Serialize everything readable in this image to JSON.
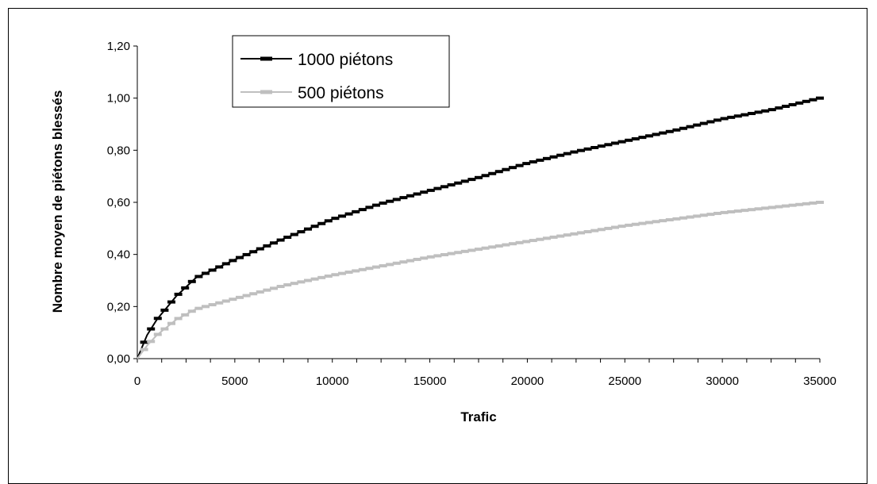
{
  "chart_data": {
    "type": "line",
    "title": "",
    "xlabel": "Trafic",
    "ylabel": "Nombre moyen de piétons blessés",
    "xlim": [
      0,
      35000
    ],
    "ylim": [
      0,
      1.2
    ],
    "x_ticks": [
      "0",
      "5000",
      "10000",
      "15000",
      "20000",
      "25000",
      "30000",
      "35000"
    ],
    "y_ticks": [
      "0,00",
      "0,20",
      "0,40",
      "0,60",
      "0,80",
      "1,00",
      "1,20"
    ],
    "grid": false,
    "legend_position": "top-left",
    "x": [
      0,
      500,
      1000,
      2000,
      3000,
      5000,
      7500,
      10000,
      12500,
      15000,
      17500,
      20000,
      22500,
      25000,
      27500,
      30000,
      32500,
      35000
    ],
    "series": [
      {
        "name": "1000 piétons",
        "color": "#000000",
        "values": [
          0.0,
          0.09,
          0.15,
          0.24,
          0.31,
          0.38,
          0.46,
          0.535,
          0.595,
          0.645,
          0.695,
          0.75,
          0.795,
          0.835,
          0.875,
          0.92,
          0.955,
          1.0
        ]
      },
      {
        "name": "500 piétons",
        "color": "#bfbfbf",
        "values": [
          0.0,
          0.05,
          0.09,
          0.15,
          0.19,
          0.23,
          0.28,
          0.32,
          0.355,
          0.39,
          0.42,
          0.45,
          0.48,
          0.51,
          0.535,
          0.56,
          0.58,
          0.6
        ]
      }
    ]
  }
}
